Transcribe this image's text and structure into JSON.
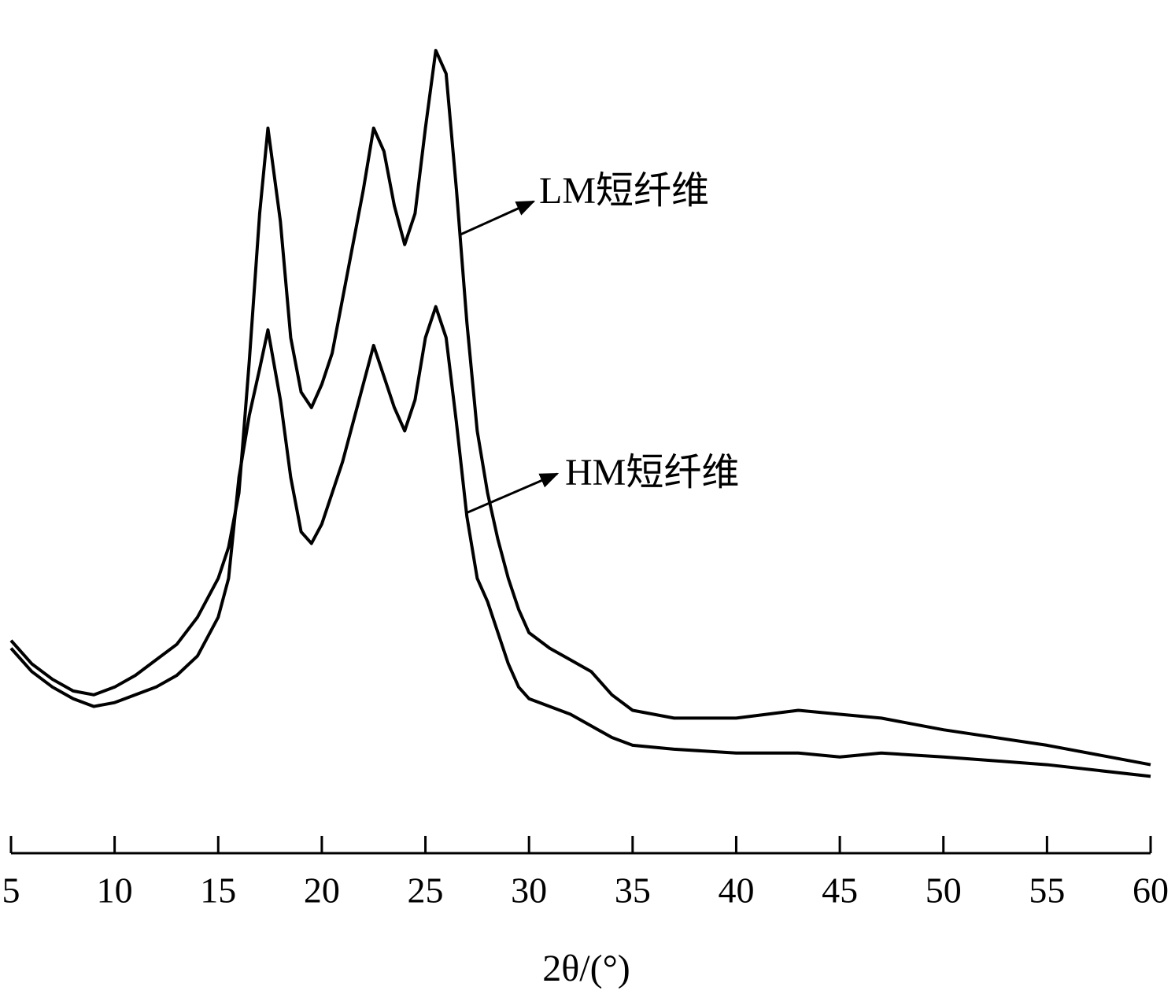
{
  "chart_data": {
    "type": "line",
    "x_label": "2θ/(°)",
    "x": [
      5,
      6,
      7,
      8,
      9,
      10,
      11,
      12,
      13,
      14,
      15,
      15.5,
      16,
      16.5,
      17,
      17.4,
      18,
      18.5,
      19,
      19.5,
      20,
      20.5,
      21,
      21.5,
      22,
      22.5,
      23,
      23.5,
      24,
      24.5,
      25,
      25.5,
      26,
      26.5,
      27,
      27.5,
      28,
      28.5,
      29,
      29.5,
      30,
      31,
      32,
      33,
      34,
      35,
      37,
      40,
      43,
      45,
      47,
      50,
      55,
      60
    ],
    "series": [
      {
        "name": "LM短纤维",
        "color": "#000000",
        "values": [
          27.5,
          24.5,
          22.5,
          21,
          20.5,
          21.5,
          23,
          25,
          27,
          30.5,
          35.5,
          39.5,
          46.5,
          63.5,
          82.5,
          93.5,
          81.5,
          66.5,
          59.5,
          57.5,
          60.5,
          64.5,
          71.5,
          78.5,
          85.5,
          93.5,
          90.5,
          83.5,
          78.5,
          82.5,
          93.5,
          103.5,
          100.5,
          85.5,
          68.5,
          54.5,
          46.5,
          40.5,
          35.5,
          31.5,
          28.5,
          26.5,
          25,
          23.5,
          20.5,
          18.5,
          17.5,
          17.5,
          18.5,
          18,
          17.5,
          16,
          14,
          11.5
        ]
      },
      {
        "name": "HM短纤维",
        "color": "#000000",
        "values": [
          26.5,
          23.5,
          21.5,
          20,
          19,
          19.5,
          20.5,
          21.5,
          23,
          25.5,
          30.5,
          35.5,
          48.5,
          56.5,
          62.5,
          67.5,
          58.5,
          48.5,
          41.5,
          40,
          42.5,
          46.5,
          50.5,
          55.5,
          60.5,
          65.5,
          61.5,
          57.5,
          54.5,
          58.5,
          66.5,
          70.5,
          66.5,
          55.5,
          43.5,
          35.5,
          32.5,
          28.5,
          24.5,
          21.5,
          20,
          19,
          18,
          16.5,
          15,
          14,
          13.5,
          13,
          13,
          12.5,
          13,
          12.5,
          11.5,
          10
        ]
      }
    ],
    "xlim": [
      5,
      60
    ],
    "xticks": [
      5,
      10,
      15,
      20,
      25,
      30,
      35,
      40,
      45,
      50,
      55,
      60
    ],
    "ylim": [
      0,
      110
    ]
  }
}
